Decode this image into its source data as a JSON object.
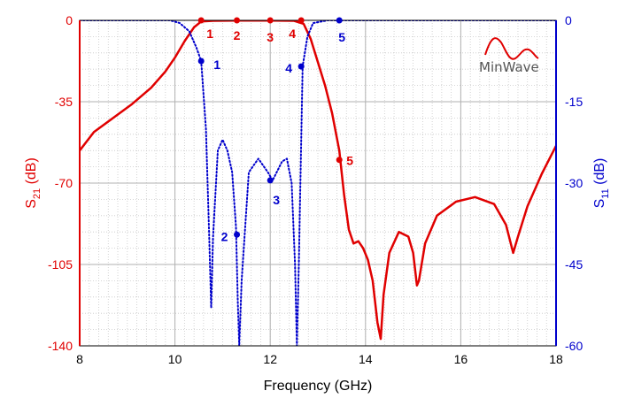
{
  "chart_data": {
    "type": "line",
    "xlabel": "Frequency (GHz)",
    "xlim": [
      8,
      18
    ],
    "xticks": [
      "8",
      "10",
      "12",
      "14",
      "16",
      "18"
    ],
    "y_left": {
      "label_base": "S",
      "label_sub": "21",
      "label_unit": " (dB)",
      "ylim": [
        -140,
        0
      ],
      "ticks": [
        "-140",
        "-105",
        "-70",
        "-35",
        "0"
      ],
      "color": "#e00000"
    },
    "y_right": {
      "label_base": "S",
      "label_sub": "11",
      "label_unit": " (dB)",
      "ylim": [
        -60,
        0
      ],
      "ticks": [
        "-60",
        "-45",
        "-30",
        "-15",
        "0"
      ],
      "color": "#0000cc"
    },
    "grid": true,
    "series": [
      {
        "axis": "left",
        "style": "solid",
        "color": "#e00000",
        "points": [
          [
            8,
            -56
          ],
          [
            8.3,
            -48
          ],
          [
            8.7,
            -42
          ],
          [
            9.1,
            -36
          ],
          [
            9.5,
            -29
          ],
          [
            9.8,
            -22
          ],
          [
            10.0,
            -16
          ],
          [
            10.2,
            -9
          ],
          [
            10.4,
            -3
          ],
          [
            10.55,
            -0.5
          ],
          [
            10.8,
            -0.2
          ],
          [
            11.3,
            -0.1
          ],
          [
            12.0,
            -0.1
          ],
          [
            12.5,
            -0.2
          ],
          [
            12.7,
            -1.5
          ],
          [
            12.85,
            -8
          ],
          [
            13.0,
            -18
          ],
          [
            13.15,
            -28
          ],
          [
            13.3,
            -40
          ],
          [
            13.45,
            -56
          ],
          [
            13.55,
            -75
          ],
          [
            13.65,
            -90
          ],
          [
            13.75,
            -96
          ],
          [
            13.85,
            -95
          ],
          [
            13.95,
            -98
          ],
          [
            14.05,
            -103
          ],
          [
            14.15,
            -112
          ],
          [
            14.25,
            -130
          ],
          [
            14.32,
            -137
          ],
          [
            14.38,
            -118
          ],
          [
            14.5,
            -100
          ],
          [
            14.7,
            -91
          ],
          [
            14.9,
            -93
          ],
          [
            15.0,
            -100
          ],
          [
            15.08,
            -114
          ],
          [
            15.12,
            -112
          ],
          [
            15.25,
            -96
          ],
          [
            15.5,
            -84
          ],
          [
            15.9,
            -78
          ],
          [
            16.3,
            -76
          ],
          [
            16.7,
            -79
          ],
          [
            16.95,
            -88
          ],
          [
            17.1,
            -100
          ],
          [
            17.2,
            -93
          ],
          [
            17.4,
            -80
          ],
          [
            17.7,
            -66
          ],
          [
            18.0,
            -54
          ]
        ]
      },
      {
        "axis": "right",
        "style": "dotted",
        "color": "#0000cc",
        "points": [
          [
            8,
            0
          ],
          [
            9.9,
            0
          ],
          [
            10.1,
            -0.5
          ],
          [
            10.3,
            -2
          ],
          [
            10.45,
            -5
          ],
          [
            10.55,
            -7.5
          ],
          [
            10.65,
            -20
          ],
          [
            10.72,
            -40
          ],
          [
            10.76,
            -53
          ],
          [
            10.8,
            -40
          ],
          [
            10.9,
            -24
          ],
          [
            11.0,
            -22
          ],
          [
            11.1,
            -24
          ],
          [
            11.2,
            -28
          ],
          [
            11.28,
            -38
          ],
          [
            11.32,
            -52
          ],
          [
            11.35,
            -60
          ],
          [
            11.4,
            -48
          ],
          [
            11.55,
            -28
          ],
          [
            11.75,
            -25.5
          ],
          [
            11.95,
            -28
          ],
          [
            12.05,
            -29.5
          ],
          [
            12.25,
            -26
          ],
          [
            12.35,
            -25.5
          ],
          [
            12.45,
            -30
          ],
          [
            12.52,
            -45
          ],
          [
            12.56,
            -60
          ],
          [
            12.6,
            -45
          ],
          [
            12.68,
            -8.5
          ],
          [
            12.78,
            -3
          ],
          [
            12.9,
            -0.5
          ],
          [
            13.2,
            0
          ],
          [
            18,
            0
          ]
        ]
      }
    ],
    "markers": [
      {
        "series": 0,
        "label": "1",
        "x": 10.55,
        "y": 0
      },
      {
        "series": 0,
        "label": "2",
        "x": 11.3,
        "y": 0
      },
      {
        "series": 0,
        "label": "3",
        "x": 12.0,
        "y": 0
      },
      {
        "series": 0,
        "label": "4",
        "x": 12.65,
        "y": 0
      },
      {
        "series": 0,
        "label": "5",
        "x": 13.45,
        "y": -60
      },
      {
        "series": 1,
        "label": "1",
        "x": 10.55,
        "y": -7.5
      },
      {
        "series": 1,
        "label": "2",
        "x": 11.3,
        "y": -39.5
      },
      {
        "series": 1,
        "label": "3",
        "x": 12.0,
        "y": -29.5
      },
      {
        "series": 1,
        "label": "4",
        "x": 12.65,
        "y": -8.5
      },
      {
        "series": 1,
        "label": "5",
        "x": 13.45,
        "y": 0
      }
    ],
    "logo_text": "MinWave",
    "logo_accent_color": "#e00000"
  }
}
